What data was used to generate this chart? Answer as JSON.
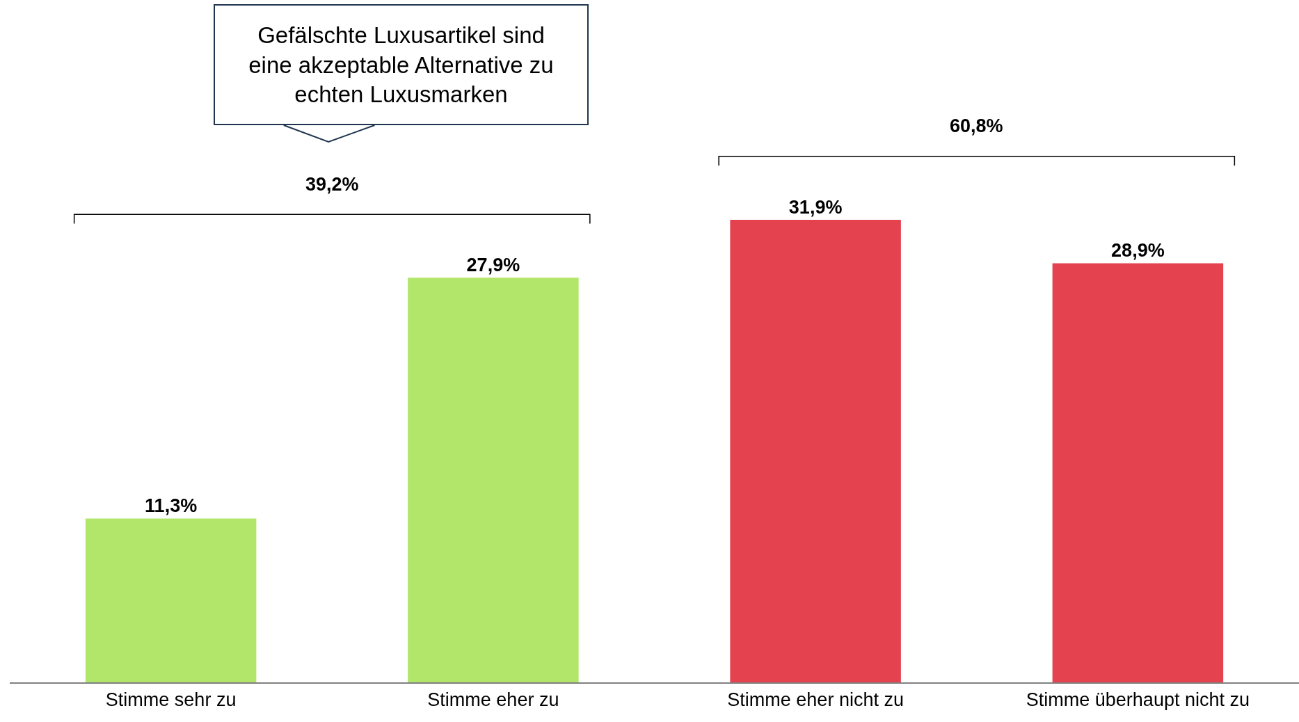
{
  "chart_data": {
    "type": "bar",
    "title": "Gefälschte Luxusartikel sind eine akzeptable Alternative zu echten Luxusmarken",
    "categories": [
      "Stimme sehr zu",
      "Stimme eher zu",
      "Stimme eher nicht zu",
      "Stimme überhaupt nicht zu"
    ],
    "values": [
      11.3,
      27.9,
      31.9,
      28.9
    ],
    "colors": [
      "#b2e66a",
      "#b2e66a",
      "#e54250",
      "#e54250"
    ],
    "value_labels": [
      "11,3%",
      "27,9%",
      "31,9%",
      "28,9%"
    ],
    "annotations": [
      "39,2%",
      "60,8%"
    ]
  }
}
